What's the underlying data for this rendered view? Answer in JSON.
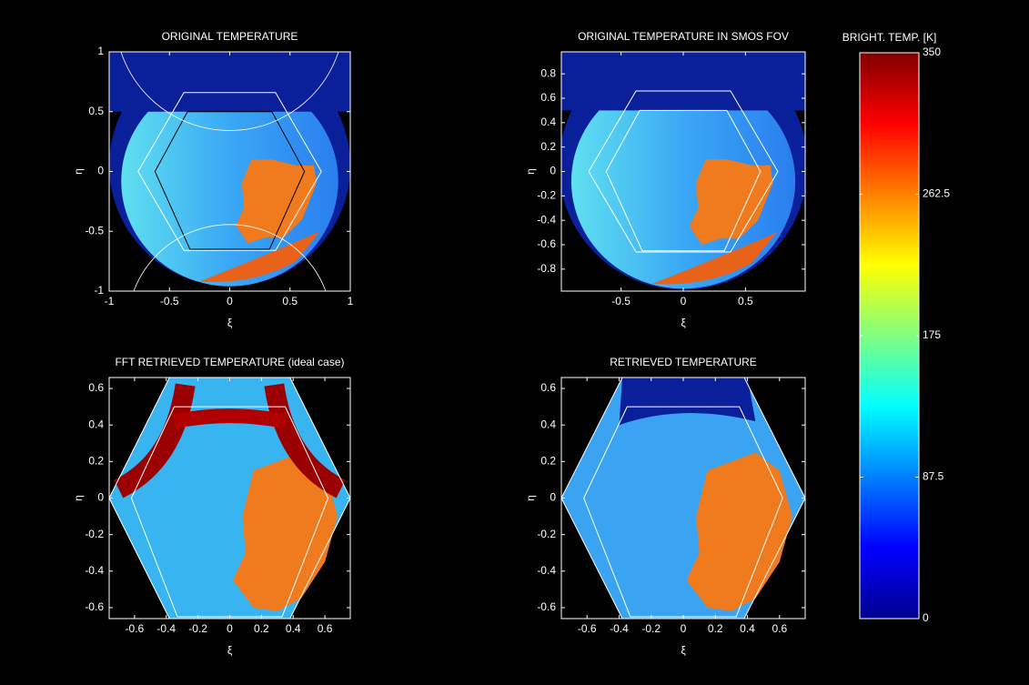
{
  "chart_data": [
    {
      "type": "heatmap",
      "title": "ORIGINAL TEMPERATURE",
      "xlabel": "ξ",
      "ylabel": "η",
      "xlim": [
        -1,
        1
      ],
      "ylim": [
        -1,
        1
      ],
      "xticks": [
        -1,
        -0.5,
        0,
        0.5,
        1
      ],
      "yticks": [
        -1,
        -0.5,
        0,
        0.5,
        1
      ]
    },
    {
      "type": "heatmap",
      "title": "ORIGINAL TEMPERATURE IN SMOS FOV",
      "xlabel": "ξ",
      "ylabel": "η",
      "xlim": [
        -0.98,
        0.98
      ],
      "ylim": [
        -0.98,
        0.98
      ],
      "xticks": [
        -0.5,
        0,
        0.5
      ],
      "yticks": [
        -0.8,
        -0.6,
        -0.4,
        -0.2,
        0,
        0.2,
        0.4,
        0.6,
        0.8
      ]
    },
    {
      "type": "heatmap",
      "title": "FFT RETRIEVED TEMPERATURE (ideal case)",
      "xlabel": "ξ",
      "ylabel": "η",
      "xlim": [
        -0.76,
        0.76
      ],
      "ylim": [
        -0.66,
        0.66
      ],
      "xticks": [
        -0.6,
        -0.4,
        -0.2,
        0,
        0.2,
        0.4,
        0.6
      ],
      "yticks": [
        -0.6,
        -0.4,
        -0.2,
        0,
        0.2,
        0.4,
        0.6
      ]
    },
    {
      "type": "heatmap",
      "title": "RETRIEVED TEMPERATURE",
      "xlabel": "ξ",
      "ylabel": "η",
      "xlim": [
        -0.76,
        0.76
      ],
      "ylim": [
        -0.66,
        0.66
      ],
      "xticks": [
        -0.6,
        -0.4,
        -0.2,
        0,
        0.2,
        0.4,
        0.6
      ],
      "yticks": [
        -0.6,
        -0.4,
        -0.2,
        0,
        0.2,
        0.4,
        0.6
      ]
    },
    {
      "type": "colorbar",
      "title": "BRIGHT. TEMP. [K]",
      "ylim": [
        0,
        350
      ],
      "yticks": [
        0,
        87.5,
        175,
        262.5,
        350
      ],
      "colors": [
        "#00008f",
        "#0000ff",
        "#0080ff",
        "#00ffff",
        "#80ff80",
        "#ffff00",
        "#ff8000",
        "#ff0000",
        "#800000"
      ]
    }
  ]
}
